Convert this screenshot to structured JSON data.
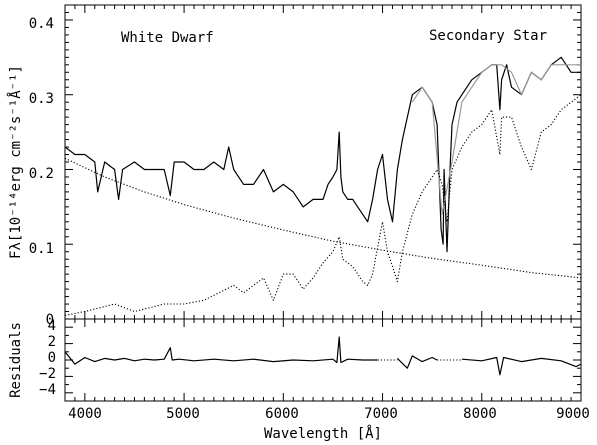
{
  "chart_data": [
    {
      "type": "line",
      "ylabel": "Fλ[10⁻¹⁴erg cm⁻²s⁻¹Å⁻¹]",
      "xlim": [
        3800,
        9000
      ],
      "ylim": [
        0,
        0.42
      ],
      "yticks": [
        "0",
        "0.1",
        "0.2",
        "0.3",
        "0.4"
      ],
      "annotations": [
        "White Dwarf",
        "Secondary Star"
      ],
      "series": [
        {
          "style": "solid",
          "color": "#000000",
          "x": [
            3800,
            3900,
            4000,
            4100,
            4130,
            4200,
            4300,
            4340,
            4380,
            4500,
            4600,
            4700,
            4800,
            4861,
            4900,
            5000,
            5100,
            5200,
            5300,
            5400,
            5450,
            5500,
            5600,
            5700,
            5800,
            5900,
            6000,
            6100,
            6200,
            6300,
            6400,
            6450,
            6500,
            6540,
            6563,
            6580,
            6600,
            6650,
            6700,
            6750,
            6800,
            6850,
            6900,
            6950,
            7000,
            7050,
            7100,
            7150,
            7200,
            7300,
            7400,
            7500,
            7550,
            7590,
            7610,
            7620,
            7650,
            7680,
            7700,
            7750,
            7800,
            7900,
            8000,
            8100,
            8150,
            8183,
            8200,
            8250,
            8300,
            8400,
            8500,
            8600,
            8700,
            8800,
            8900,
            9000
          ],
          "y": [
            0.23,
            0.22,
            0.22,
            0.21,
            0.17,
            0.21,
            0.2,
            0.16,
            0.2,
            0.21,
            0.2,
            0.2,
            0.2,
            0.165,
            0.21,
            0.21,
            0.2,
            0.2,
            0.21,
            0.2,
            0.23,
            0.2,
            0.18,
            0.18,
            0.2,
            0.17,
            0.18,
            0.17,
            0.15,
            0.16,
            0.16,
            0.18,
            0.19,
            0.2,
            0.25,
            0.19,
            0.17,
            0.16,
            0.16,
            0.15,
            0.14,
            0.13,
            0.16,
            0.2,
            0.22,
            0.16,
            0.13,
            0.2,
            0.24,
            0.3,
            0.31,
            0.29,
            0.26,
            0.12,
            0.1,
            0.2,
            0.09,
            0.2,
            0.26,
            0.29,
            0.3,
            0.32,
            0.33,
            0.34,
            0.34,
            0.28,
            0.32,
            0.34,
            0.31,
            0.3,
            0.33,
            0.32,
            0.34,
            0.35,
            0.33,
            0.33
          ]
        },
        {
          "style": "solid",
          "color": "#999999",
          "x": [
            7300,
            7400,
            7500,
            7600,
            7700,
            7800,
            7900,
            8000,
            8100,
            8200,
            8300,
            8400,
            8500,
            8600,
            8700,
            8800,
            8900,
            9000
          ],
          "y": [
            0.29,
            0.31,
            0.29,
            0.14,
            0.21,
            0.29,
            0.31,
            0.33,
            0.34,
            0.34,
            0.33,
            0.3,
            0.33,
            0.32,
            0.34,
            0.34,
            0.34,
            0.34
          ]
        },
        {
          "style": "dotted",
          "color": "#000000",
          "x": [
            3800,
            4200,
            4600,
            5000,
            5500,
            6000,
            6500,
            7000,
            7500,
            8000,
            8500,
            9000
          ],
          "y": [
            0.215,
            0.19,
            0.17,
            0.153,
            0.135,
            0.119,
            0.104,
            0.092,
            0.081,
            0.072,
            0.062,
            0.055
          ]
        },
        {
          "style": "dotted",
          "color": "#000000",
          "x": [
            3800,
            4000,
            4300,
            4500,
            4800,
            5000,
            5200,
            5500,
            5600,
            5800,
            5900,
            6000,
            6100,
            6200,
            6300,
            6400,
            6500,
            6563,
            6600,
            6700,
            6800,
            6850,
            6900,
            7000,
            7050,
            7100,
            7150,
            7200,
            7300,
            7400,
            7450,
            7500,
            7550,
            7600,
            7650,
            7700,
            7800,
            7900,
            8000,
            8100,
            8183,
            8200,
            8300,
            8400,
            8500,
            8600,
            8700,
            8800,
            8900,
            9000
          ],
          "y": [
            0.005,
            0.01,
            0.02,
            0.01,
            0.02,
            0.02,
            0.025,
            0.045,
            0.035,
            0.055,
            0.025,
            0.06,
            0.06,
            0.04,
            0.055,
            0.075,
            0.09,
            0.11,
            0.08,
            0.07,
            0.05,
            0.045,
            0.06,
            0.13,
            0.09,
            0.07,
            0.05,
            0.09,
            0.14,
            0.17,
            0.18,
            0.19,
            0.2,
            0.18,
            0.13,
            0.2,
            0.23,
            0.25,
            0.26,
            0.28,
            0.22,
            0.27,
            0.27,
            0.23,
            0.2,
            0.25,
            0.26,
            0.28,
            0.29,
            0.3
          ]
        }
      ]
    },
    {
      "type": "line",
      "ylabel": "Residuals",
      "xlabel": "Wavelength [Å]",
      "xlim": [
        3800,
        9000
      ],
      "ylim": [
        -5,
        5
      ],
      "yticks": [
        "4",
        "2",
        "0",
        "−2",
        "−4"
      ],
      "xticks": [
        "4000",
        "5000",
        "6000",
        "7000",
        "8000",
        "9000"
      ],
      "series": [
        {
          "style": "solid",
          "color": "#000000",
          "x": [
            3800,
            3900,
            4000,
            4100,
            4200,
            4300,
            4400,
            4500,
            4600,
            4700,
            4800,
            4861,
            4880,
            4950,
            5100,
            5300,
            5500,
            5700,
            5900,
            6100,
            6300,
            6500,
            6540,
            6563,
            6580,
            6650,
            6800,
            6950
          ],
          "y": [
            1.0,
            -0.5,
            0.3,
            -0.2,
            0.2,
            0.0,
            0.2,
            -0.1,
            0.1,
            0.0,
            0.1,
            1.5,
            0.0,
            0.1,
            -0.1,
            0.1,
            -0.1,
            0.1,
            -0.2,
            0.0,
            -0.1,
            0.1,
            -0.3,
            2.8,
            -0.3,
            0.1,
            0.0,
            0.0
          ]
        },
        {
          "style": "dotted",
          "color": "#000000",
          "x": [
            6950,
            7150
          ],
          "y": [
            0.0,
            0.0
          ]
        },
        {
          "style": "solid",
          "color": "#000000",
          "x": [
            7150,
            7250,
            7300,
            7400,
            7500,
            7550
          ],
          "y": [
            0.2,
            -1.0,
            0.5,
            -0.2,
            0.3,
            0.0
          ]
        },
        {
          "style": "dotted",
          "color": "#000000",
          "x": [
            7550,
            7800
          ],
          "y": [
            0.0,
            0.0
          ]
        },
        {
          "style": "solid",
          "color": "#000000",
          "x": [
            7800,
            8000,
            8150,
            8183,
            8220,
            8400,
            8600,
            8800,
            8950,
            9000
          ],
          "y": [
            0.1,
            -0.1,
            0.3,
            -1.8,
            0.3,
            -0.2,
            0.2,
            -0.1,
            -0.8,
            -0.5
          ]
        }
      ]
    }
  ]
}
